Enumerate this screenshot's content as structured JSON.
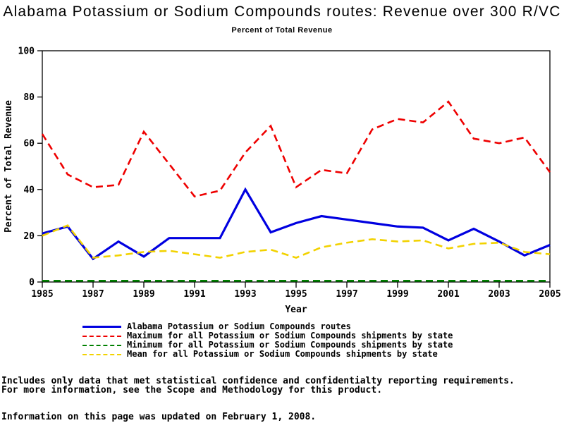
{
  "title": "Alabama Potassium or Sodium Compounds routes: Revenue over 300 R/VC",
  "subtitle": "Percent of Total Revenue",
  "chart_data": {
    "type": "line",
    "x": [
      1985,
      1986,
      1987,
      1988,
      1989,
      1990,
      1991,
      1992,
      1993,
      1994,
      1995,
      1996,
      1997,
      1998,
      1999,
      2000,
      2001,
      2002,
      2003,
      2004,
      2005
    ],
    "xticks": [
      1985,
      1987,
      1989,
      1991,
      1993,
      1995,
      1997,
      1999,
      2001,
      2003,
      2005
    ],
    "yticks": [
      0,
      20,
      40,
      60,
      80,
      100
    ],
    "ylim": [
      0,
      100
    ],
    "xlabel": "Year",
    "ylabel": "Percent of Total Revenue",
    "grid": false,
    "legend_position": "bottom",
    "series": [
      {
        "name": "Alabama Potassium or Sodium Compounds routes",
        "color": "#0000E0",
        "style": "solid",
        "values": [
          21,
          24,
          10,
          17.5,
          11,
          19,
          19,
          19,
          40,
          21.5,
          25.5,
          28.5,
          27,
          25.5,
          24,
          23.5,
          18,
          23,
          17.5,
          11.5,
          16
        ]
      },
      {
        "name": "Maximum for all Potassium or Sodium Compounds shipments by state",
        "color": "#EE0000",
        "style": "dashed",
        "values": [
          64,
          46.5,
          41,
          42,
          65,
          51,
          37,
          39.5,
          56,
          67.5,
          41,
          48.5,
          47,
          66,
          70.5,
          69,
          78,
          62,
          60,
          62.5,
          47.5
        ]
      },
      {
        "name": "Minimum for all Potassium or Sodium Compounds shipments by state",
        "color": "#008000",
        "style": "dashed",
        "values": [
          0.5,
          0.5,
          0.5,
          0.5,
          0.5,
          0.5,
          0.5,
          0.5,
          0.5,
          0.5,
          0.5,
          0.5,
          0.5,
          0.5,
          0.5,
          0.5,
          0.5,
          0.5,
          0.5,
          0.5,
          0.5
        ]
      },
      {
        "name": "Mean for all Potassium or Sodium Compounds shipments by state",
        "color": "#F2D200",
        "style": "dashed",
        "values": [
          20,
          24.5,
          10.5,
          11.5,
          13,
          13.5,
          12,
          10.5,
          13,
          14,
          10.5,
          15,
          17,
          18.5,
          17.5,
          18,
          14.5,
          16.5,
          17,
          13,
          12
        ]
      }
    ]
  },
  "footer": {
    "line1": "Includes only data that met statistical confidence and confidentialty reporting requirements.",
    "line2": "For more information, see the Scope and Methodology for this product.",
    "updated": "Information on this page was updated on February 1, 2008."
  }
}
